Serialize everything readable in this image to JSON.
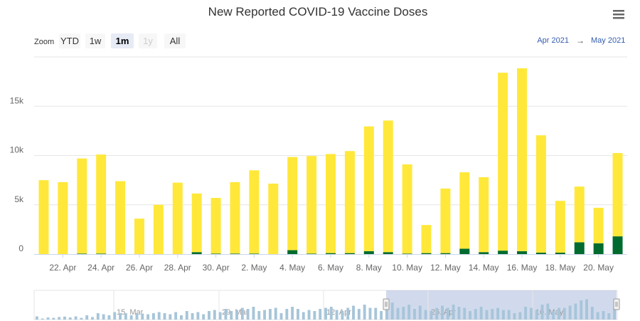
{
  "chart_data": {
    "type": "bar",
    "stacked": true,
    "title": "New Reported COVID-19 Vaccine Doses",
    "x": [
      "21. Apr",
      "22. Apr",
      "23. Apr",
      "24. Apr",
      "25. Apr",
      "26. Apr",
      "27. Apr",
      "28. Apr",
      "29. Apr",
      "30. Apr",
      "1. May",
      "2. May",
      "3. May",
      "4. May",
      "5. May",
      "6. May",
      "7. May",
      "8. May",
      "9. May",
      "10. May",
      "11. May",
      "12. May",
      "13. May",
      "14. May",
      "15. May",
      "16. May",
      "17. May",
      "18. May",
      "19. May",
      "20. May",
      "21. May"
    ],
    "series": [
      {
        "values": [
          0,
          0,
          50,
          50,
          0,
          0,
          0,
          0,
          200,
          50,
          50,
          50,
          0,
          400,
          50,
          100,
          100,
          300,
          200,
          50,
          100,
          100,
          550,
          200,
          350,
          300,
          150,
          150,
          1200,
          1100,
          1800
        ],
        "color": "#006b2f"
      },
      {
        "values": [
          7500,
          7300,
          9650,
          10050,
          7400,
          3600,
          5000,
          7250,
          5950,
          5650,
          7250,
          8450,
          7150,
          9450,
          9900,
          10050,
          10350,
          12650,
          13350,
          9050,
          2850,
          6550,
          7750,
          7600,
          18050,
          18550,
          11900,
          5250,
          5650,
          3600,
          8450
        ],
        "color": "#ffe83a"
      }
    ],
    "ylim": [
      0,
      20000
    ],
    "yticks": [
      0,
      5000,
      10000,
      15000
    ],
    "ytick_labels": [
      "0",
      "5k",
      "10k",
      "15k"
    ],
    "xtick_labels": [
      "22. Apr",
      "24. Apr",
      "26. Apr",
      "28. Apr",
      "30. Apr",
      "2. May",
      "4. May",
      "6. May",
      "8. May",
      "10. May",
      "12. May",
      "14. May",
      "16. May",
      "18. May",
      "20. May"
    ],
    "grid": true,
    "legend": "none"
  },
  "zoom": {
    "label": "Zoom",
    "buttons": [
      {
        "label": "YTD",
        "state": "normal"
      },
      {
        "label": "1w",
        "state": "normal"
      },
      {
        "label": "1m",
        "state": "active"
      },
      {
        "label": "1y",
        "state": "disabled"
      },
      {
        "label": "All",
        "state": "normal"
      }
    ]
  },
  "range": {
    "from": "Apr 2021",
    "arrow": "→",
    "to": "May 2021"
  },
  "menu": {
    "icon": "hamburger-menu-icon"
  },
  "navigator": {
    "labels": [
      "15. Mar",
      "29. Mar",
      "12. Apr",
      "26. Apr",
      "10. May"
    ],
    "values": [
      0.15,
      0.05,
      0.1,
      0.08,
      0.12,
      0.14,
      0.1,
      0.15,
      0.08,
      0.2,
      0.12,
      0.3,
      0.25,
      0.2,
      0.35,
      0.3,
      0.3,
      0.2,
      0.3,
      0.28,
      0.25,
      0.3,
      0.35,
      0.3,
      0.25,
      0.35,
      0.2,
      0.4,
      0.3,
      0.35,
      0.25,
      0.4,
      0.45,
      0.35,
      0.5,
      0.4,
      0.45,
      0.55,
      0.5,
      0.6,
      0.4,
      0.45,
      0.5,
      0.55,
      0.3,
      0.5,
      0.6,
      0.5,
      0.35,
      0.45,
      0.4,
      0.5,
      0.55,
      0.6,
      0.45,
      0.4,
      0.55,
      0.65,
      0.5,
      0.7,
      0.55,
      0.55,
      0.4,
      0.7,
      0.8,
      0.55,
      0.6,
      0.7,
      0.5,
      0.65,
      0.45,
      0.4,
      0.55,
      0.65,
      0.55,
      0.7,
      0.6,
      0.55,
      0.4,
      0.5,
      0.6,
      0.45,
      0.5,
      0.55,
      0.45,
      0.45,
      0.3,
      0.35,
      0.6,
      0.55,
      0.45,
      0.7,
      0.75,
      0.4,
      0.55,
      0.55,
      0.65,
      0.75,
      0.9,
      0.95,
      0.6,
      0.35,
      0.4,
      0.3,
      0.5
    ],
    "selected_from": "21. Apr",
    "selected_to": "21. May"
  }
}
